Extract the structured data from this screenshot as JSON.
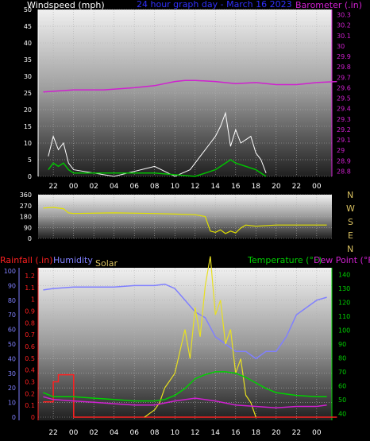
{
  "title": "24 hour graph day - March 16 2023",
  "colors": {
    "wind": "#ffffff",
    "gust_avg": "#00c000",
    "barometer": "#d020d0",
    "direction": "#e0e000",
    "rainfall": "#ff2020",
    "humidity": "#8080ff",
    "solar": "#e8e020",
    "temperature": "#00d000",
    "dewpoint": "#d020d0",
    "axis_yellow": "#d8c060"
  },
  "panel1": {
    "left_label": "Windspeed (mph)",
    "right_label": "Barometer (.in)",
    "left_ticks": [
      "50",
      "45",
      "40",
      "35",
      "30",
      "25",
      "20",
      "15",
      "10",
      "5",
      "0"
    ],
    "right_ticks": [
      "30.3",
      "30.2",
      "30.1",
      "30",
      "29.9",
      "29.8",
      "29.7",
      "29.6",
      "29.5",
      "29.4",
      "29.3",
      "29.2",
      "29.1",
      "29",
      "28.9",
      "28.8"
    ]
  },
  "panel2": {
    "left_ticks": [
      "360",
      "270",
      "180",
      "90",
      "0"
    ],
    "compass": [
      "N",
      "W",
      "S",
      "E",
      "N"
    ]
  },
  "panel3": {
    "left_labels": [
      "Rainfall (.in)",
      "Humidity",
      "Solar"
    ],
    "right_labels": [
      "Temperature (°F)",
      "Dew Point (°F)"
    ],
    "humidity_ticks": [
      "100",
      "90",
      "80",
      "70",
      "60",
      "50",
      "40",
      "30",
      "20",
      "10",
      "0"
    ],
    "rain_ticks": [
      "1.2",
      "1.1",
      "1",
      "0.9",
      "0.8",
      "0.7",
      "0.6",
      "0.5",
      "0.4",
      "0.3",
      "0.2",
      "0.1",
      "0"
    ],
    "temp_ticks": [
      "140",
      "130",
      "120",
      "110",
      "100",
      "90",
      "80",
      "70",
      "60",
      "50",
      "40"
    ]
  },
  "x_ticks": [
    "22",
    "00",
    "02",
    "04",
    "06",
    "08",
    "10",
    "12",
    "14",
    "16",
    "18",
    "20",
    "22",
    "00"
  ],
  "chart_data": [
    {
      "type": "line",
      "title": "24 hour graph day - March 16 2023",
      "x_ticks": [
        "22",
        "00",
        "02",
        "04",
        "06",
        "08",
        "10",
        "12",
        "14",
        "16",
        "18",
        "20",
        "22",
        "00"
      ],
      "series": [
        {
          "x": [
            -3,
            0,
            3,
            6,
            8,
            9,
            10,
            11,
            12,
            14,
            16,
            18,
            20,
            22,
            24,
            26
          ],
          "values": [
            29.56,
            29.58,
            29.58,
            29.6,
            29.62,
            29.64,
            29.66,
            29.67,
            29.67,
            29.66,
            29.64,
            29.65,
            29.63,
            29.63,
            29.65,
            29.66
          ]
        },
        {
          "x": [
            -2.5,
            -2,
            -1.5,
            -1,
            -0.5,
            0,
            4,
            8,
            10,
            11.5,
            12,
            12.5,
            13,
            13.5,
            14,
            14.5,
            15,
            15.5,
            16,
            16.5,
            17,
            17.5,
            18,
            18.5,
            19
          ],
          "values": [
            6,
            12,
            8,
            10,
            4,
            2,
            0,
            3,
            0,
            2,
            4,
            6,
            8,
            10,
            12,
            15,
            19,
            9,
            14,
            10,
            11,
            12,
            7,
            5,
            1
          ]
        },
        {
          "x": [
            -2.5,
            -2,
            -1.5,
            -1,
            -0.5,
            0,
            8,
            12,
            13,
            14,
            15,
            15.5,
            16,
            17,
            18,
            19
          ],
          "values": [
            2,
            4,
            3,
            4,
            2,
            1,
            1,
            0,
            1,
            2,
            4,
            5,
            4,
            3,
            2,
            0
          ]
        }
      ],
      "y_left": {
        "label": "Windspeed (mph)",
        "range": [
          0,
          50
        ]
      },
      "y_right": {
        "label": "Barometer (.in)",
        "range": [
          28.75,
          30.35
        ]
      }
    },
    {
      "type": "line",
      "x_ticks": [
        "22",
        "00",
        "02",
        "04",
        "06",
        "08",
        "10",
        "12",
        "14",
        "16",
        "18",
        "20",
        "22",
        "00"
      ],
      "series": [
        {
          "x": [
            -3,
            -2,
            -1,
            -0.5,
            0,
            4,
            8,
            10,
            12,
            13,
            13.5,
            14,
            14.5,
            15,
            15.5,
            16,
            16.5,
            17,
            18,
            20,
            22,
            24,
            25
          ],
          "values": [
            250,
            255,
            245,
            210,
            205,
            210,
            205,
            200,
            195,
            180,
            60,
            50,
            70,
            40,
            60,
            45,
            85,
            110,
            100,
            110,
            110,
            110,
            110
          ]
        }
      ],
      "y_left": {
        "range": [
          0,
          360
        ]
      }
    },
    {
      "type": "line",
      "x_ticks": [
        "22",
        "00",
        "02",
        "04",
        "06",
        "08",
        "10",
        "12",
        "14",
        "16",
        "18",
        "20",
        "22",
        "00"
      ],
      "series": [
        {
          "name": "Humidity",
          "x": [
            -3,
            -2,
            0,
            4,
            6,
            8,
            9,
            10,
            11,
            12,
            13,
            14,
            15,
            16,
            17,
            18,
            19,
            20,
            21,
            22,
            24,
            25
          ],
          "values": [
            87,
            88,
            89,
            89,
            90,
            90,
            91,
            88,
            80,
            72,
            68,
            55,
            50,
            45,
            45,
            40,
            45,
            45,
            55,
            70,
            80,
            82
          ]
        },
        {
          "name": "Rainfall",
          "x": [
            -3,
            -2,
            -1.5,
            -1,
            0,
            0.01,
            26
          ],
          "values": [
            0.13,
            0.3,
            0.36,
            0.36,
            0.36,
            0,
            0
          ]
        },
        {
          "name": "Solar",
          "x": [
            7,
            8,
            8.5,
            9,
            9.5,
            10,
            10.5,
            11,
            11.5,
            12,
            12.5,
            13,
            13.5,
            14,
            14.5,
            15,
            15.5,
            16,
            16.5,
            17,
            17.5,
            18
          ],
          "values": [
            0,
            5,
            10,
            20,
            25,
            30,
            45,
            60,
            40,
            75,
            55,
            90,
            110,
            70,
            80,
            50,
            60,
            30,
            40,
            15,
            10,
            0
          ]
        },
        {
          "name": "Temperature",
          "x": [
            -3,
            -2,
            0,
            2,
            4,
            6,
            8,
            9,
            10,
            11,
            12,
            13,
            14,
            15,
            16,
            17,
            18,
            19,
            20,
            22,
            24,
            25
          ],
          "values": [
            55,
            52,
            52,
            51,
            50,
            49,
            49,
            50,
            53,
            58,
            65,
            68,
            70,
            70,
            69,
            66,
            62,
            58,
            55,
            53,
            52,
            52
          ]
        },
        {
          "name": "Dew Point",
          "x": [
            -3,
            -2,
            0,
            2,
            4,
            6,
            8,
            10,
            12,
            14,
            16,
            18,
            20,
            22,
            24,
            25
          ],
          "values": [
            52,
            50,
            49,
            48,
            47,
            46,
            46,
            49,
            51,
            49,
            46,
            45,
            44,
            45,
            45,
            46
          ]
        }
      ],
      "y_humidity": {
        "label": "Humidity",
        "range": [
          0,
          100
        ]
      },
      "y_rain": {
        "label": "Rainfall (.in)",
        "range": [
          0,
          1.2
        ]
      },
      "y_temp": {
        "label": "Temperature (°F)",
        "range": [
          35,
          145
        ]
      }
    }
  ]
}
